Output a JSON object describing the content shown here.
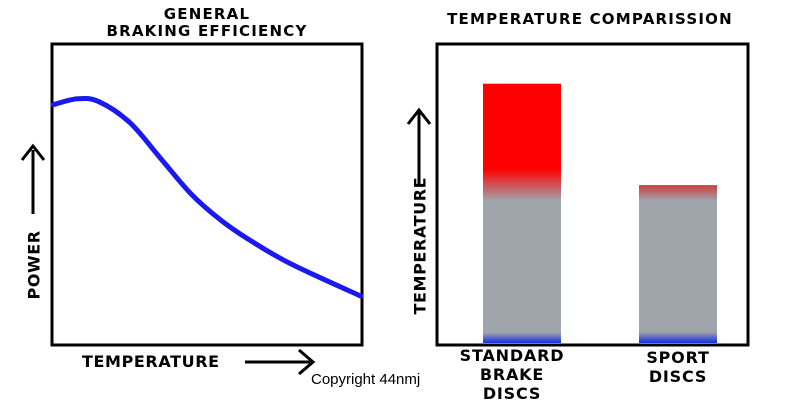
{
  "chart_data": [
    {
      "type": "line",
      "title_line1": "GENERAL",
      "title_line2": "BRAKING EFFICIENCY",
      "xlabel": "TEMPERATURE",
      "ylabel": "POWER",
      "x": [
        0,
        0.08,
        0.15,
        0.25,
        0.35,
        0.45,
        0.55,
        0.65,
        0.75,
        0.85,
        1.0
      ],
      "values": [
        0.8,
        0.82,
        0.81,
        0.74,
        0.62,
        0.5,
        0.41,
        0.34,
        0.28,
        0.23,
        0.16
      ],
      "xlim": [
        0,
        1
      ],
      "ylim": [
        0,
        1
      ],
      "series_color": "#1a1aee",
      "grid": false
    },
    {
      "type": "bar",
      "title": "TEMPERATURE COMPARISSION",
      "ylabel": "TEMPERATURE",
      "categories": [
        "STANDARD BRAKE DISCS",
        "SPORT DISCS"
      ],
      "category_lines": [
        [
          "STANDARD",
          "BRAKE",
          "DISCS"
        ],
        [
          "SPORT",
          "DISCS"
        ]
      ],
      "values": [
        0.87,
        0.53
      ],
      "ylim": [
        0,
        1
      ],
      "colors": {
        "hot": "#ff0000",
        "mid": "#a0a4ab",
        "cold": "#1030e0"
      },
      "grid": false
    }
  ],
  "copyright": "Copyright 44nmj"
}
